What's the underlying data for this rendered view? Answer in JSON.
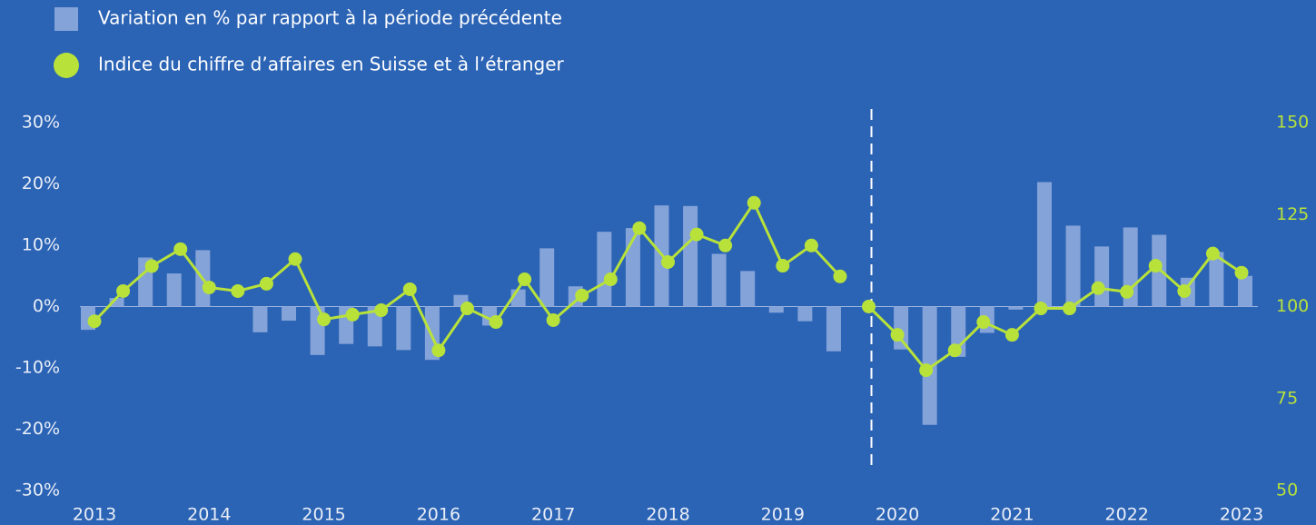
{
  "chart_data": {
    "type": "bar-line",
    "categories": [
      "2013",
      null,
      null,
      null,
      "2014",
      null,
      null,
      null,
      "2015",
      null,
      null,
      null,
      "2016",
      null,
      null,
      null,
      "2017",
      null,
      null,
      null,
      "2018",
      null,
      null,
      null,
      "2019",
      null,
      null,
      null,
      "2020",
      null,
      null,
      null,
      "2021",
      null,
      null,
      null,
      "2022",
      null,
      null,
      null,
      "2023"
    ],
    "series": [
      {
        "name": "Variation en % par rapport à la période précédente",
        "type": "bar",
        "color": "#84a3d8",
        "values": [
          -3.8,
          1.4,
          8,
          5.4,
          9.2,
          0,
          -4.2,
          -2.3,
          -7.9,
          -6.1,
          -6.5,
          -7.1,
          -8.7,
          1.9,
          -3.1,
          2.8,
          9.5,
          3.3,
          12.2,
          12.8,
          16.5,
          16.4,
          8.6,
          5.8,
          -1,
          -2.4,
          -7.3,
          null,
          -7.0,
          -19.3,
          -8.2,
          -4.3,
          -0.5,
          20.3,
          13.2,
          9.8,
          12.9,
          11.7,
          4.7,
          8.9,
          5.0
        ]
      },
      {
        "name": "Indice du chiffre d’affaires en Suisse et à l’étranger",
        "type": "line",
        "axis": "y2",
        "color": "#b8e23a",
        "values": [
          96,
          104.2,
          111,
          115.6,
          105.2,
          104.2,
          106.2,
          112.9,
          96.5,
          97.8,
          99,
          104.7,
          88.1,
          99.5,
          95.8,
          107.4,
          96.3,
          103,
          107.4,
          121.3,
          112.1,
          119.6,
          116.6,
          128.2,
          111.1,
          116.6,
          108.2,
          100,
          92.3,
          82.7,
          88.1,
          95.8,
          92.3,
          99.5,
          99.5,
          105,
          104,
          111.1,
          104.2,
          114.4,
          109.2
        ]
      }
    ],
    "break_index": 27,
    "ylim": [
      -30,
      30
    ],
    "yticks": [
      {
        "value": -30,
        "label": "-30%"
      },
      {
        "value": -20,
        "label": "-20%"
      },
      {
        "value": -10,
        "label": "-10%"
      },
      {
        "value": 0,
        "label": "0%"
      },
      {
        "value": 10,
        "label": "10%"
      },
      {
        "value": 20,
        "label": "20%"
      },
      {
        "value": 30,
        "label": "30%"
      }
    ],
    "y2lim": [
      50,
      150
    ],
    "y2ticks": [
      50,
      75,
      100,
      125,
      150
    ],
    "legend": "top-left"
  }
}
